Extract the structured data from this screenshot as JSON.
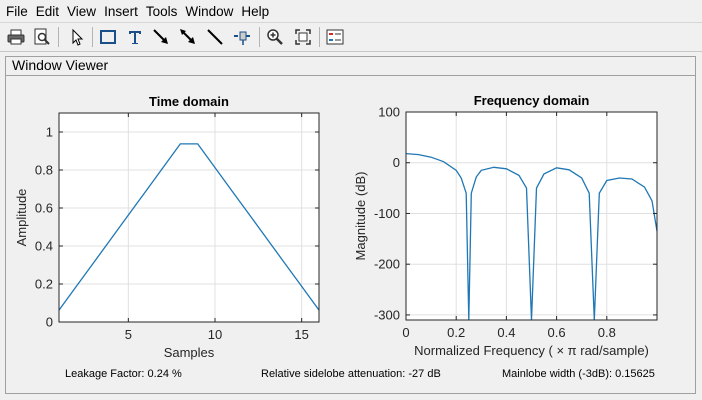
{
  "menu": [
    "File",
    "Edit",
    "View",
    "Insert",
    "Tools",
    "Window",
    "Help"
  ],
  "toolbar": {
    "buttons": [
      "print-icon",
      "print-preview-icon",
      "pointer-icon",
      "insert-rectangle-icon",
      "insert-text-icon",
      "insert-arrow-icon",
      "insert-double-arrow-icon",
      "insert-line-icon",
      "pin-icon",
      "zoom-in-icon",
      "full-view-icon",
      "legend-icon"
    ]
  },
  "panel": {
    "title": "Window Viewer"
  },
  "status": {
    "leakage": "Leakage Factor: 0.24 %",
    "sidelobe": "Relative sidelobe attenuation: -27 dB",
    "mainlobe": "Mainlobe width (-3dB): 0.15625"
  },
  "colors": {
    "line": "#1f77b4",
    "grid": "#e0e0e0",
    "axes_bg": "#ffffff"
  },
  "chart_data": [
    {
      "type": "line",
      "title": "Time domain",
      "xlabel": "Samples",
      "ylabel": "Amplitude",
      "xlim": [
        1,
        16
      ],
      "ylim": [
        0,
        1.1
      ],
      "xticks": [
        5,
        10,
        15
      ],
      "yticks": [
        0,
        0.2,
        0.4,
        0.6,
        0.8,
        1
      ],
      "ytick_labels": [
        "0",
        "0.2",
        "0.4",
        "0.6",
        "0.8",
        "1"
      ],
      "grid": true,
      "x": [
        1,
        2,
        3,
        4,
        5,
        6,
        7,
        8,
        9,
        10,
        11,
        12,
        13,
        14,
        15,
        16
      ],
      "y": [
        0.0625,
        0.1875,
        0.3125,
        0.4375,
        0.5625,
        0.6875,
        0.8125,
        0.9375,
        0.9375,
        0.8125,
        0.6875,
        0.5625,
        0.4375,
        0.3125,
        0.1875,
        0.0625
      ]
    },
    {
      "type": "line",
      "title": "Frequency domain",
      "xlabel": "Normalized Frequency  ( × π rad/sample)",
      "ylabel": "Magnitude (dB)",
      "xlim": [
        0,
        1
      ],
      "ylim": [
        -310,
        100
      ],
      "xticks": [
        0,
        0.2,
        0.4,
        0.6,
        0.8
      ],
      "xtick_labels": [
        "0",
        "0.2",
        "0.4",
        "0.6",
        "0.8"
      ],
      "yticks": [
        -300,
        -200,
        -100,
        0,
        100
      ],
      "ytick_labels": [
        "-300",
        "-200",
        "-100",
        "0",
        "100"
      ],
      "grid": true,
      "peak_db": 18.06,
      "nulls": [
        0.25,
        0.5,
        0.75
      ],
      "x": [
        0,
        0.05,
        0.1,
        0.15,
        0.2,
        0.22,
        0.24,
        0.25,
        0.26,
        0.28,
        0.3,
        0.35,
        0.4,
        0.45,
        0.48,
        0.5,
        0.52,
        0.55,
        0.6,
        0.65,
        0.7,
        0.73,
        0.75,
        0.77,
        0.8,
        0.85,
        0.9,
        0.95,
        0.98,
        1
      ],
      "y": [
        18,
        16,
        11,
        2,
        -15,
        -30,
        -60,
        -310,
        -60,
        -28,
        -15,
        -9,
        -12,
        -25,
        -50,
        -310,
        -50,
        -22,
        -10,
        -14,
        -30,
        -60,
        -310,
        -60,
        -35,
        -30,
        -32,
        -48,
        -75,
        -135
      ]
    }
  ]
}
